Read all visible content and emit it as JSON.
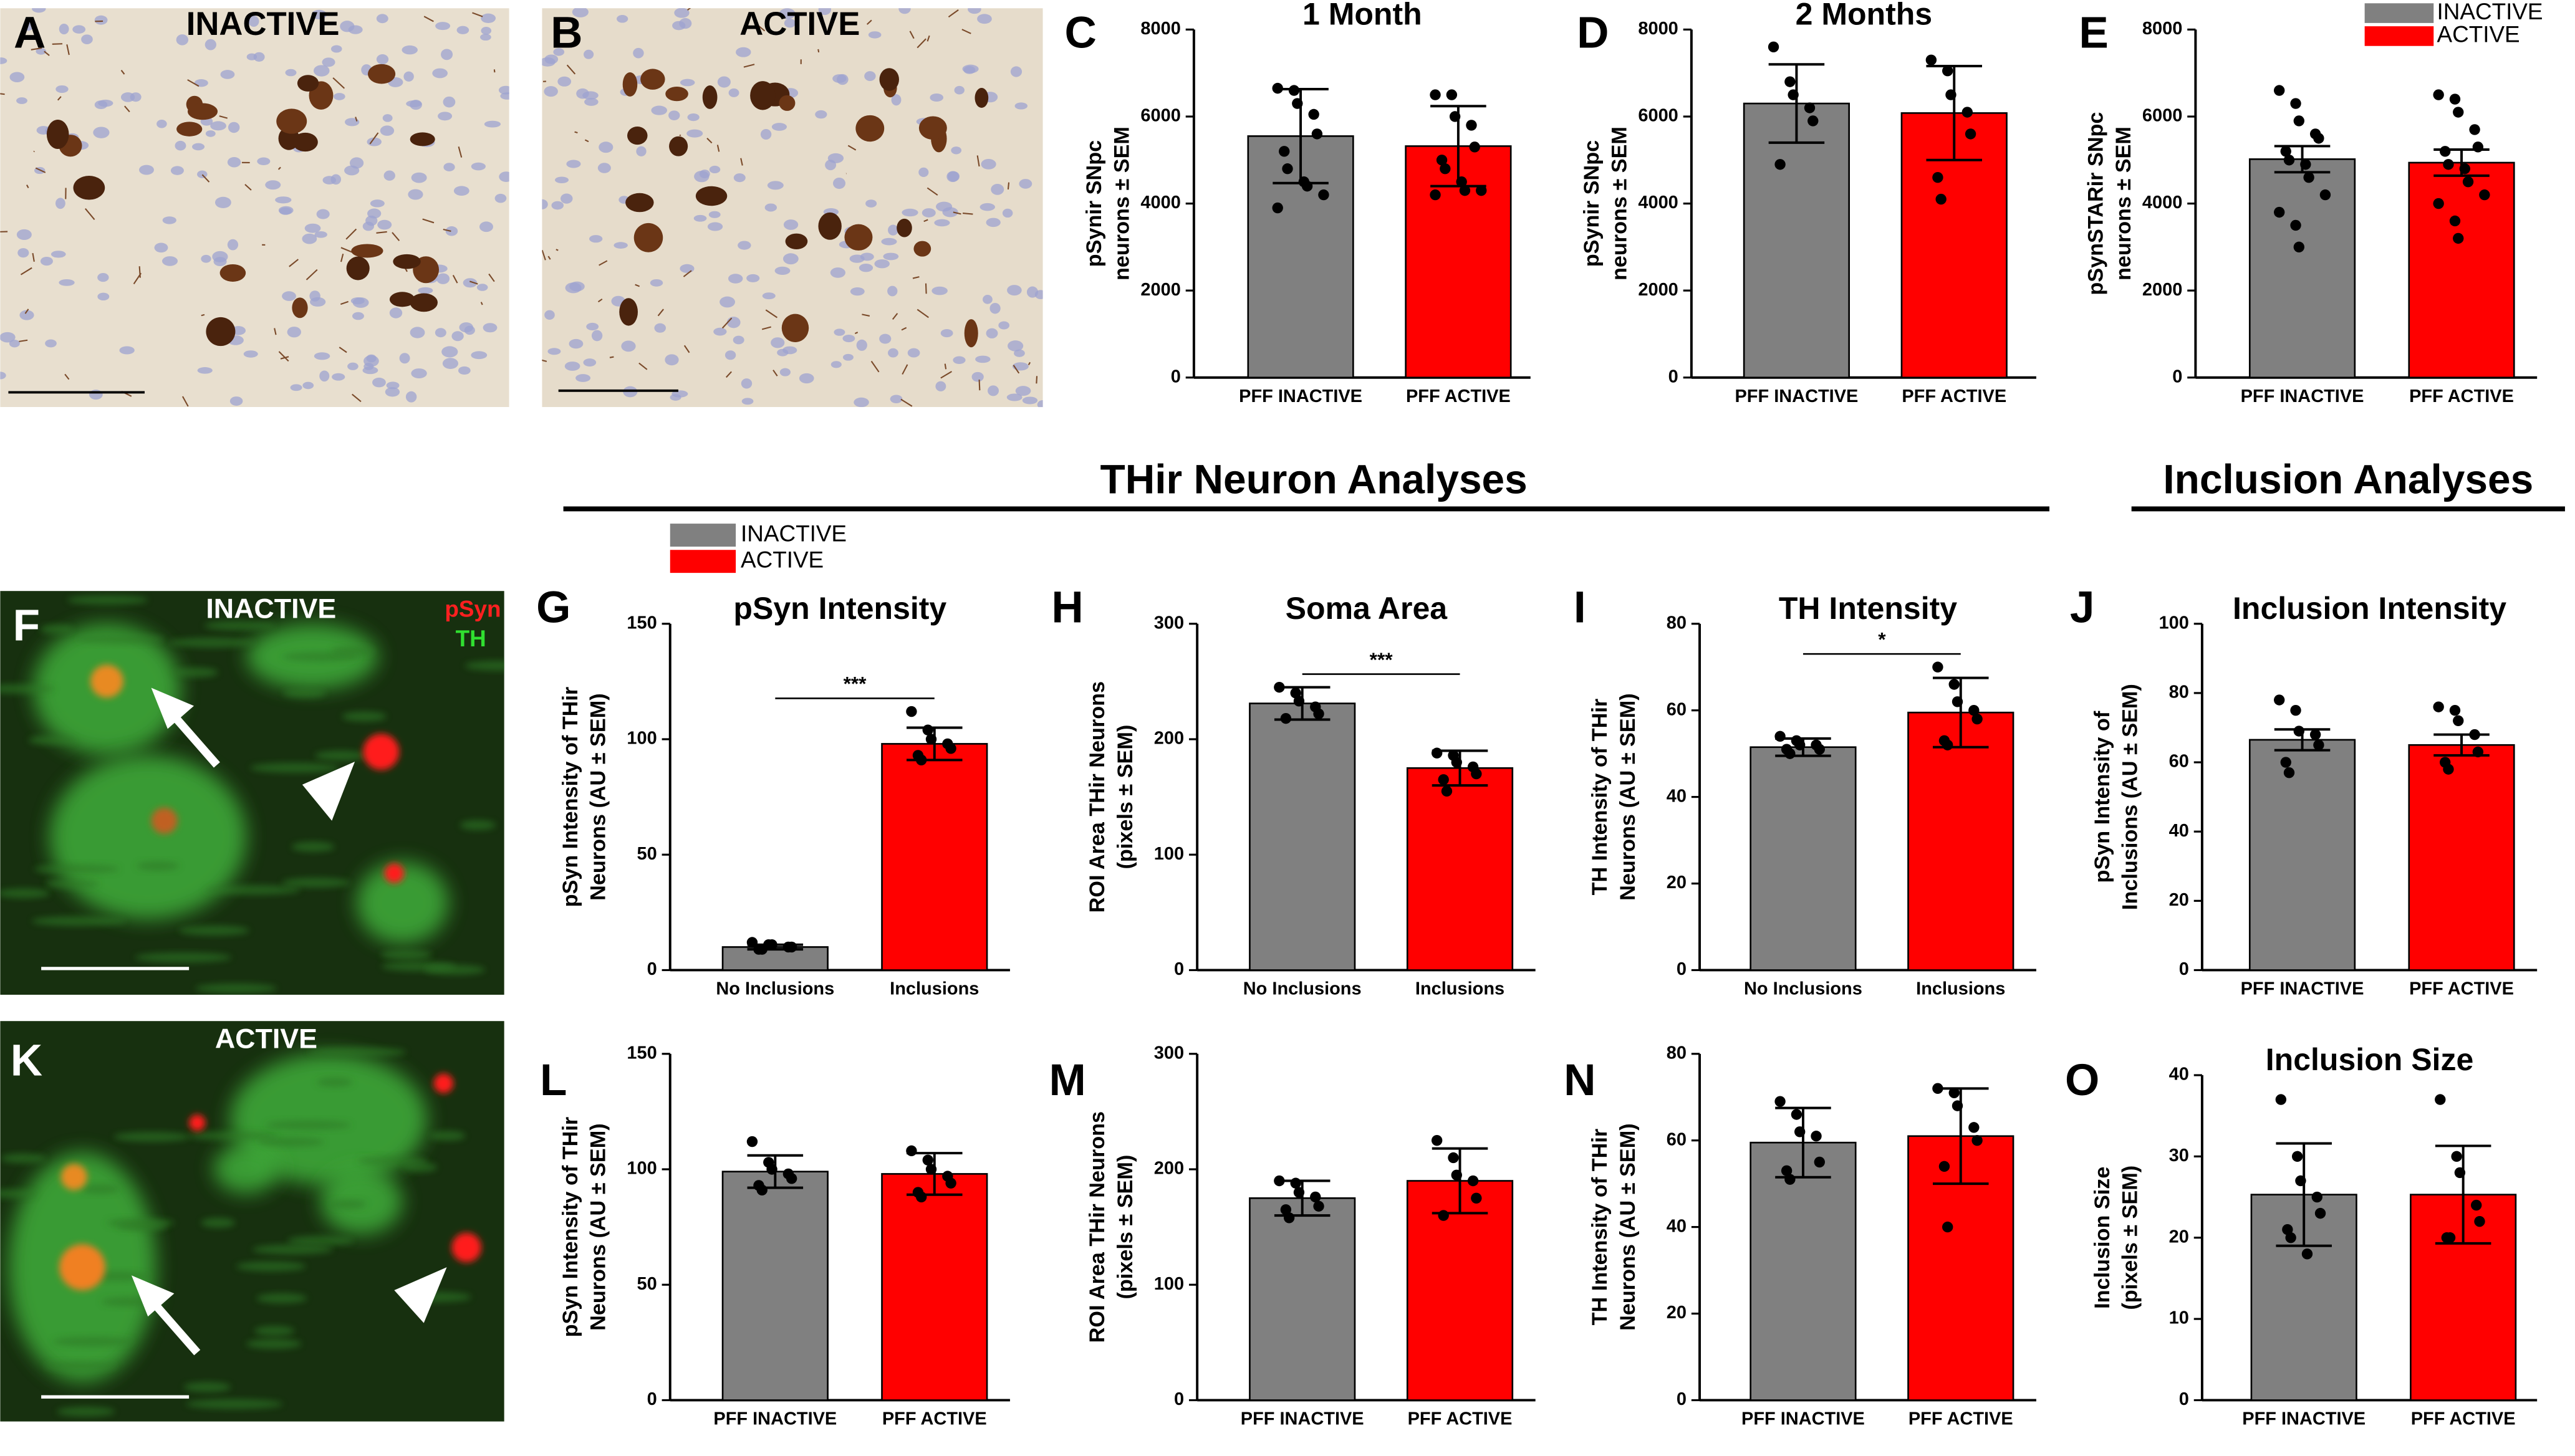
{
  "figure": {
    "panel_letters": [
      "A",
      "B",
      "C",
      "D",
      "E",
      "F",
      "G",
      "H",
      "I",
      "J",
      "K",
      "L",
      "M",
      "N",
      "O"
    ],
    "headings": [
      "THir Neuron Analyses",
      "Inclusion Analyses"
    ],
    "micrographs": [
      {
        "label": "INACTIVE"
      },
      {
        "label": "ACTIVE"
      },
      {
        "label": "INACTIVE",
        "stains": [
          "pSyn",
          "TH"
        ]
      },
      {
        "label": "ACTIVE"
      }
    ],
    "legend": [
      "INACTIVE",
      "ACTIVE"
    ]
  },
  "chart_data": [
    {
      "type": "bar",
      "title": "1 Month",
      "ylabel": [
        "pSynir SNpc",
        "neurons ± SEM"
      ],
      "categories": [
        "PFF INACTIVE",
        "PFF ACTIVE"
      ],
      "colors": [
        "#808080",
        "#ff0000"
      ],
      "values": [
        5550,
        5320
      ],
      "errors": [
        1080,
        920
      ],
      "points": [
        [
          6650,
          6600,
          6300,
          6050,
          5600,
          5200,
          4800,
          4500,
          4400,
          4200,
          3900
        ],
        [
          6500,
          6500,
          6000,
          5800,
          5300,
          5000,
          4800,
          4500,
          4300,
          4300,
          4200
        ]
      ],
      "ylim": [
        0,
        8000
      ],
      "yticks": [
        0,
        2000,
        4000,
        6000,
        8000
      ]
    },
    {
      "type": "bar",
      "title": "2 Months",
      "ylabel": [
        "pSynir SNpc",
        "neurons ± SEM"
      ],
      "categories": [
        "PFF INACTIVE",
        "PFF ACTIVE"
      ],
      "colors": [
        "#808080",
        "#ff0000"
      ],
      "values": [
        6300,
        6080
      ],
      "errors": [
        900,
        1080
      ],
      "points": [
        [
          7600,
          6800,
          6500,
          6200,
          5900,
          4900
        ],
        [
          7300,
          7050,
          6500,
          6100,
          5600,
          4600,
          4100
        ]
      ],
      "ylim": [
        0,
        8000
      ],
      "yticks": [
        0,
        2000,
        4000,
        6000,
        8000
      ]
    },
    {
      "type": "bar",
      "ylabel": [
        "pSynSTARir SNpc",
        "neurons ± SEM"
      ],
      "categories": [
        "PFF INACTIVE",
        "PFF ACTIVE"
      ],
      "colors": [
        "#808080",
        "#ff0000"
      ],
      "values": [
        5020,
        4940
      ],
      "errors": [
        300,
        300
      ],
      "points": [
        [
          6600,
          6300,
          5900,
          5600,
          5500,
          5200,
          5000,
          4900,
          4600,
          4200,
          3800,
          3500,
          3000
        ],
        [
          6500,
          6400,
          6100,
          5700,
          5300,
          5200,
          4900,
          4800,
          4500,
          4200,
          4000,
          3600,
          3200
        ]
      ],
      "ylim": [
        0,
        8000
      ],
      "yticks": [
        0,
        2000,
        4000,
        6000,
        8000
      ]
    },
    {
      "type": "bar",
      "title": "pSyn Intensity",
      "ylabel": [
        "pSyn Intensity of THir",
        "Neurons (AU ± SEM)"
      ],
      "categories": [
        "No Inclusions",
        "Inclusions"
      ],
      "colors": [
        "#808080",
        "#ff0000"
      ],
      "values": [
        10,
        98
      ],
      "errors": [
        1,
        7
      ],
      "annotation": "***",
      "points": [
        [
          12,
          11,
          11,
          10,
          10,
          9,
          9
        ],
        [
          112,
          104,
          100,
          98,
          96,
          93,
          91
        ]
      ],
      "ylim": [
        0,
        150
      ],
      "yticks": [
        0,
        50,
        100,
        150
      ]
    },
    {
      "type": "bar",
      "title": "Soma Area",
      "ylabel": [
        "ROI Area THir Neurons",
        "(pixels ± SEM)"
      ],
      "categories": [
        "No Inclusions",
        "Inclusions"
      ],
      "colors": [
        "#808080",
        "#ff0000"
      ],
      "values": [
        231,
        175
      ],
      "errors": [
        14,
        15
      ],
      "annotation": "***",
      "points": [
        [
          245,
          240,
          233,
          228,
          222,
          218
        ],
        [
          188,
          186,
          180,
          176,
          170,
          165,
          155
        ]
      ],
      "ylim": [
        0,
        300
      ],
      "yticks": [
        0,
        100,
        200,
        300
      ]
    },
    {
      "type": "bar",
      "title": "TH Intensity",
      "ylabel": [
        "TH Intensity of THir",
        "Neurons (AU ± SEM)"
      ],
      "categories": [
        "No Inclusions",
        "Inclusions"
      ],
      "colors": [
        "#808080",
        "#ff0000"
      ],
      "values": [
        51.5,
        59.5
      ],
      "errors": [
        2,
        8
      ],
      "annotation": "*",
      "points": [
        [
          54,
          53,
          52,
          52,
          51,
          51,
          50
        ],
        [
          70,
          66,
          62,
          60,
          58,
          53,
          52
        ]
      ],
      "ylim": [
        0,
        80
      ],
      "yticks": [
        0,
        20,
        40,
        60,
        80
      ]
    },
    {
      "type": "bar",
      "title": "Inclusion Intensity",
      "ylabel": [
        "pSyn Intensity of",
        "Inclusions (AU ± SEM)"
      ],
      "categories": [
        "PFF INACTIVE",
        "PFF ACTIVE"
      ],
      "colors": [
        "#808080",
        "#ff0000"
      ],
      "values": [
        66.5,
        65
      ],
      "errors": [
        3,
        3
      ],
      "points": [
        [
          78,
          75,
          69,
          68,
          65,
          60,
          57
        ],
        [
          76,
          75,
          72,
          68,
          63,
          60,
          58
        ]
      ],
      "ylim": [
        0,
        100
      ],
      "yticks": [
        0,
        20,
        40,
        60,
        80,
        100
      ]
    },
    {
      "type": "bar",
      "ylabel": [
        "pSyn Intensity of THir",
        "Neurons (AU ± SEM)"
      ],
      "categories": [
        "PFF INACTIVE",
        "PFF ACTIVE"
      ],
      "colors": [
        "#808080",
        "#ff0000"
      ],
      "values": [
        99,
        98
      ],
      "errors": [
        7,
        9
      ],
      "points": [
        [
          112,
          103,
          100,
          98,
          96,
          93,
          91
        ],
        [
          108,
          104,
          100,
          97,
          94,
          90,
          88
        ]
      ],
      "ylim": [
        0,
        150
      ],
      "yticks": [
        0,
        50,
        100,
        150
      ]
    },
    {
      "type": "bar",
      "ylabel": [
        "ROI Area THir Neurons",
        "(pixels ± SEM)"
      ],
      "categories": [
        "PFF INACTIVE",
        "PFF ACTIVE"
      ],
      "colors": [
        "#808080",
        "#ff0000"
      ],
      "values": [
        175,
        190
      ],
      "errors": [
        15,
        28
      ],
      "points": [
        [
          190,
          188,
          180,
          176,
          168,
          165,
          158
        ],
        [
          225,
          210,
          195,
          190,
          175,
          160
        ]
      ],
      "ylim": [
        0,
        300
      ],
      "yticks": [
        0,
        100,
        200,
        300
      ]
    },
    {
      "type": "bar",
      "ylabel": [
        "TH Intensity of THir",
        "Neurons (AU ± SEM)"
      ],
      "categories": [
        "PFF INACTIVE",
        "PFF ACTIVE"
      ],
      "colors": [
        "#808080",
        "#ff0000"
      ],
      "values": [
        59.5,
        61
      ],
      "errors": [
        8,
        11
      ],
      "points": [
        [
          69,
          66,
          62,
          61,
          55,
          53,
          51
        ],
        [
          72,
          71,
          68,
          63,
          60,
          54,
          40
        ]
      ],
      "ylim": [
        0,
        80
      ],
      "yticks": [
        0,
        20,
        40,
        60,
        80
      ]
    },
    {
      "type": "bar",
      "title": "Inclusion Size",
      "ylabel": [
        "Inclusion Size",
        "(pixels ± SEM)"
      ],
      "categories": [
        "PFF INACTIVE",
        "PFF ACTIVE"
      ],
      "colors": [
        "#808080",
        "#ff0000"
      ],
      "values": [
        25.3,
        25.3
      ],
      "errors": [
        6.3,
        6
      ],
      "points": [
        [
          37,
          30,
          27,
          25,
          23,
          21,
          20,
          18
        ],
        [
          37,
          30,
          28,
          24,
          22,
          20,
          20
        ]
      ],
      "ylim": [
        0,
        40
      ],
      "yticks": [
        0,
        10,
        20,
        30,
        40
      ]
    }
  ]
}
